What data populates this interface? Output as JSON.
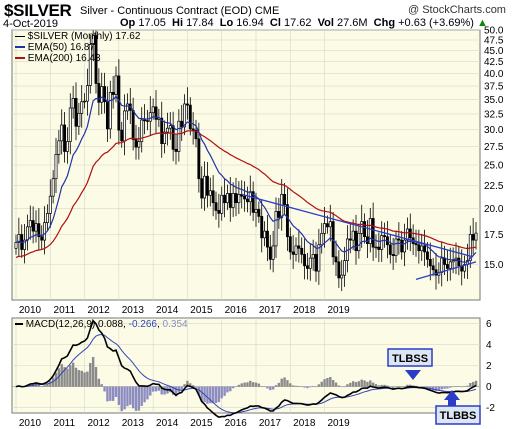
{
  "header": {
    "symbol": "$SILVER",
    "description": "Silver - Continuous Contract (EOD)",
    "exchange": "CME",
    "watermark": "@ StockCharts.com",
    "date": "4-Oct-2019",
    "open_label": "Op",
    "open": "17.05",
    "high_label": "Hi",
    "high": "17.84",
    "low_label": "Lo",
    "low": "16.94",
    "close_label": "Cl",
    "close": "17.62",
    "volume_label": "Vol",
    "volume": "27.6M",
    "change_label": "Chg",
    "change": "+0.63 (+3.69%)",
    "change_arrow": "▲"
  },
  "legend": {
    "main": "$SILVER (Monthly) 17.62",
    "ema50": "EMA(50) 16.87",
    "ema200": "EMA(200) 16.43"
  },
  "macd_legend": {
    "label": "MACD(12,26,9)",
    "macd": "0.088",
    "signal": "-0.266",
    "histogram": "0.354"
  },
  "annotations": {
    "tlbss": "TLBSS",
    "tlbbs": "TLBBS"
  },
  "colors": {
    "price": "#000000",
    "ema50": "#2233aa",
    "ema200": "#b01010",
    "trendline": "#2a3cc8",
    "panel_bg": "#fcfbe6",
    "grid": "#cfcfcf",
    "histogram": "#8c8cc0",
    "histogram_pos": "#8a8a8a",
    "annotation_bg": "#dde6f5"
  },
  "chart_data": [
    {
      "type": "candlestick",
      "title": "$SILVER (Monthly)",
      "ylim": [
        12.5,
        50
      ],
      "y_scale": "log",
      "y_ticks": [
        50.0,
        47.5,
        45.0,
        42.5,
        40.0,
        37.5,
        35.0,
        32.5,
        30.0,
        27.5,
        25.0,
        22.5,
        20.0,
        17.5,
        15.0
      ],
      "x_ticks": [
        "2010",
        "2011",
        "2012",
        "2013",
        "2014",
        "2015",
        "2016",
        "2017",
        "2018",
        "2019"
      ],
      "grid": true,
      "legend_position": "top-left",
      "close": [
        16.8,
        17.5,
        16.2,
        17.0,
        18.2,
        18.8,
        17.8,
        18.5,
        17.3,
        17.0,
        18.6,
        19.5,
        21.3,
        23.3,
        26.4,
        28.3,
        30.7,
        26.8,
        28.2,
        33.5,
        35.2,
        30.5,
        32.6,
        34.6,
        34.7,
        37.6,
        46.4,
        48.6,
        38.0,
        34.5,
        37.4,
        34.6,
        30.1,
        36.3,
        35.9,
        39.5,
        29.9,
        28.3,
        33.0,
        34.2,
        33.1,
        28.5,
        27.4,
        28.2,
        31.5,
        31.4,
        31.3,
        32.7,
        33.7,
        31.6,
        31.8,
        27.9,
        29.6,
        30.2,
        30.6,
        27.1,
        26.8,
        31.3,
        30.4,
        34.2,
        34.0,
        30.1,
        29.9,
        28.6,
        23.3,
        21.1,
        23.6,
        21.4,
        21.9,
        20.6,
        19.8,
        19.5,
        21.4,
        20.6,
        21.6,
        20.1,
        21.6,
        20.6,
        21.5,
        21.3,
        21.0,
        20.7,
        21.8,
        19.6,
        19.9,
        19.2,
        17.2,
        17.8,
        16.4,
        15.4,
        16.5,
        19.7,
        19.1,
        21.5,
        20.4,
        17.3,
        16.0,
        15.8,
        16.5,
        16.3,
        15.8,
        14.9,
        14.7,
        15.5,
        15.8,
        14.5,
        16.6,
        17.6,
        18.5,
        18.2,
        18.7,
        15.6,
        15.2,
        14.0,
        14.2,
        15.3,
        17.1,
        17.0,
        17.8,
        16.1,
        17.6,
        18.7,
        17.3,
        16.7,
        19.0,
        16.4,
        16.4,
        16.2,
        17.4,
        17.3,
        16.6,
        15.8,
        15.7,
        17.1,
        17.0,
        16.0,
        17.0,
        18.0,
        17.2,
        16.7,
        16.6,
        16.1,
        16.5,
        16.0,
        15.4,
        14.9,
        14.6,
        14.2,
        14.4,
        15.5,
        15.0,
        14.7,
        15.2,
        15.3,
        15.5,
        14.9,
        14.5,
        15.0,
        15.3,
        17.5,
        17.0,
        17.62
      ]
    },
    {
      "type": "line",
      "title": "MACD(12,26,9)",
      "ylim": [
        -2.5,
        6.5
      ],
      "y_ticks": [
        6,
        4,
        2,
        0,
        -2
      ],
      "x_ticks": [
        "2010",
        "2011",
        "2012",
        "2013",
        "2014",
        "2015",
        "2016",
        "2017",
        "2018",
        "2019"
      ],
      "series": [
        {
          "name": "MACD",
          "last": 0.088
        },
        {
          "name": "Signal",
          "last": -0.266
        },
        {
          "name": "Histogram",
          "last": 0.354
        }
      ]
    }
  ]
}
